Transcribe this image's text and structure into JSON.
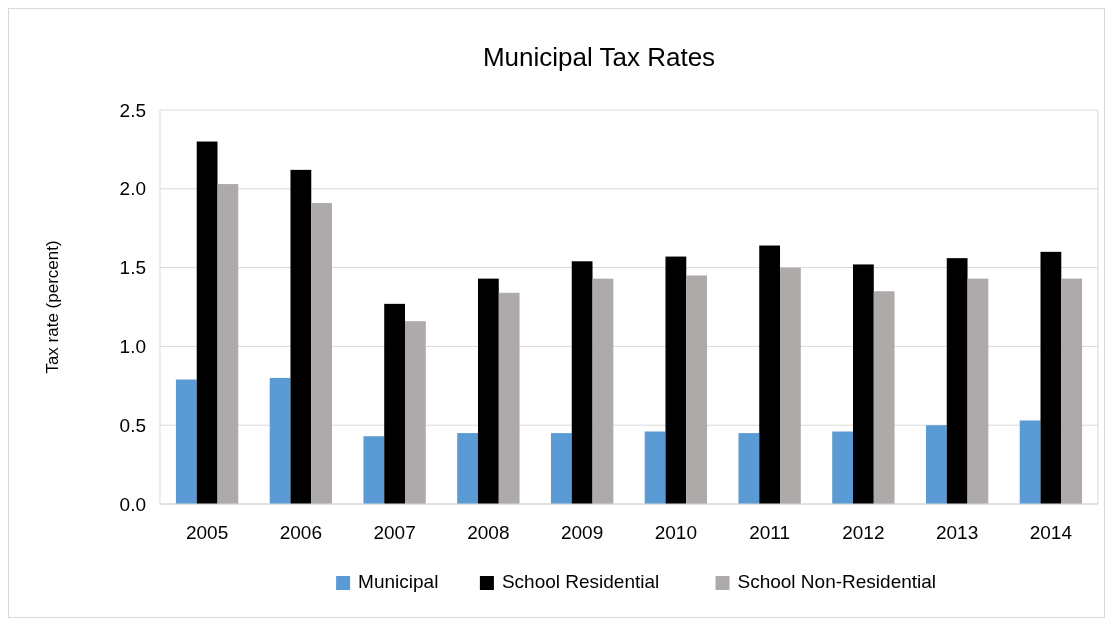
{
  "chart_data": {
    "type": "bar",
    "title": "Municipal Tax Rates",
    "ylabel": "Tax rate (percent)",
    "categories": [
      "2005",
      "2006",
      "2007",
      "2008",
      "2009",
      "2010",
      "2011",
      "2012",
      "2013",
      "2014"
    ],
    "series": [
      {
        "name": "Municipal",
        "color": "#5b9bd5",
        "values": [
          0.79,
          0.8,
          0.43,
          0.45,
          0.45,
          0.46,
          0.45,
          0.46,
          0.5,
          0.53
        ]
      },
      {
        "name": "School Residential",
        "color": "#000000",
        "values": [
          2.3,
          2.12,
          1.27,
          1.43,
          1.54,
          1.57,
          1.64,
          1.52,
          1.56,
          1.6
        ]
      },
      {
        "name": "School Non-Residential",
        "color": "#aeaaaa",
        "values": [
          2.03,
          1.91,
          1.16,
          1.34,
          1.43,
          1.45,
          1.5,
          1.35,
          1.43,
          1.43
        ]
      }
    ],
    "ylim": [
      0,
      2.5
    ],
    "yticks": [
      {
        "value": 0,
        "label": "0.0"
      },
      {
        "value": 0.5,
        "label": "0.5"
      },
      {
        "value": 1,
        "label": "1.0"
      },
      {
        "value": 1.5,
        "label": "1.5"
      },
      {
        "value": 2,
        "label": "2.0"
      },
      {
        "value": 2.5,
        "label": "2.5"
      }
    ],
    "grid": "y",
    "legend": "bottom"
  }
}
